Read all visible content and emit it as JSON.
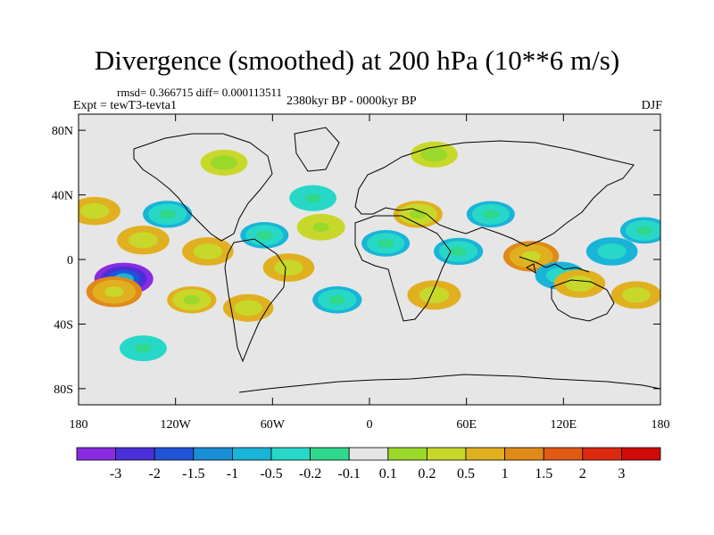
{
  "chart_data": {
    "type": "heatmap",
    "title": "Divergence (smoothed) at 200 hPa (10**6 m/s)",
    "stats_text": "rmsd= 0.366715 diff= 0.000113511",
    "experiment_text": "Expt = tewT3-tevta1",
    "period_text": "2380kyr BP - 0000kyr BP",
    "season_text": "DJF",
    "xlim": [
      -180,
      180
    ],
    "ylim": [
      -90,
      90
    ],
    "x_ticks": [
      {
        "value": -180,
        "label": "180"
      },
      {
        "value": -120,
        "label": "120W"
      },
      {
        "value": -60,
        "label": "60W"
      },
      {
        "value": 0,
        "label": "0"
      },
      {
        "value": 60,
        "label": "60E"
      },
      {
        "value": 120,
        "label": "120E"
      },
      {
        "value": 180,
        "label": "180"
      }
    ],
    "y_ticks": [
      {
        "value": 80,
        "label": "80N"
      },
      {
        "value": 40,
        "label": "40N"
      },
      {
        "value": 0,
        "label": "0"
      },
      {
        "value": -40,
        "label": "40S"
      },
      {
        "value": -80,
        "label": "80S"
      }
    ],
    "colorbar": {
      "levels": [
        "-3",
        "-2",
        "-1.5",
        "-1",
        "-0.5",
        "-0.2",
        "-0.1",
        "0.1",
        "0.2",
        "0.5",
        "1",
        "1.5",
        "2",
        "3"
      ],
      "colors": [
        "#8a2be2",
        "#4b2fd8",
        "#2155d8",
        "#1a8ed6",
        "#19b4d8",
        "#27d8c8",
        "#2fd88a",
        "#e6e6e6",
        "#9ad82a",
        "#c8d82a",
        "#e0b020",
        "#e08a1a",
        "#e05a14",
        "#dc2a10",
        "#d20a0a"
      ]
    },
    "anomalies": [
      {
        "lon": -152,
        "lat": -12,
        "value": -3.0
      },
      {
        "lon": -158,
        "lat": -20,
        "value": 1.2
      },
      {
        "lon": -140,
        "lat": 12,
        "value": 0.9
      },
      {
        "lon": -170,
        "lat": 30,
        "value": 0.8
      },
      {
        "lon": -125,
        "lat": 28,
        "value": -0.6
      },
      {
        "lon": -100,
        "lat": 5,
        "value": 0.8
      },
      {
        "lon": -110,
        "lat": -25,
        "value": 0.6
      },
      {
        "lon": -65,
        "lat": 15,
        "value": -0.5
      },
      {
        "lon": -50,
        "lat": -5,
        "value": 0.8
      },
      {
        "lon": -75,
        "lat": -30,
        "value": 0.7
      },
      {
        "lon": -30,
        "lat": 20,
        "value": 0.5
      },
      {
        "lon": -35,
        "lat": 38,
        "value": -0.4
      },
      {
        "lon": -20,
        "lat": -25,
        "value": -0.6
      },
      {
        "lon": 10,
        "lat": 10,
        "value": -0.5
      },
      {
        "lon": 30,
        "lat": 28,
        "value": 0.6
      },
      {
        "lon": 40,
        "lat": -22,
        "value": 1.0
      },
      {
        "lon": 55,
        "lat": 5,
        "value": -0.6
      },
      {
        "lon": 75,
        "lat": 28,
        "value": -0.5
      },
      {
        "lon": 100,
        "lat": 2,
        "value": 1.2
      },
      {
        "lon": 118,
        "lat": -10,
        "value": -0.7
      },
      {
        "lon": 130,
        "lat": -15,
        "value": 0.8
      },
      {
        "lon": 150,
        "lat": 5,
        "value": -0.8
      },
      {
        "lon": 165,
        "lat": -22,
        "value": 0.7
      },
      {
        "lon": 170,
        "lat": 18,
        "value": -0.5
      },
      {
        "lon": -90,
        "lat": 60,
        "value": 0.4
      },
      {
        "lon": 40,
        "lat": 65,
        "value": 0.4
      },
      {
        "lon": -140,
        "lat": -55,
        "value": -0.4
      }
    ]
  }
}
